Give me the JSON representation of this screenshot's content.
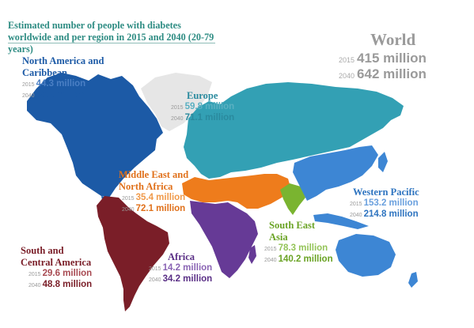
{
  "title": "Estimated number of people with diabetes worldwide and per region in 2015 and 2040 (20-79 years)",
  "world": {
    "name": "World",
    "rows": [
      {
        "year": "2015",
        "value": "415 million"
      },
      {
        "year": "2040",
        "value": "642 million"
      }
    ]
  },
  "regions": {
    "north_america": {
      "name_line1": "North America and",
      "name_line2": "Caribbean",
      "color": "#1c5aa6",
      "y2015": "2015",
      "v2015": "44.3 million",
      "y2040": "2040",
      "v2040": "60.5 million"
    },
    "europe": {
      "name_line1": "Europe",
      "color": "#33a0b4",
      "y2015": "2015",
      "v2015": "59.8 million",
      "y2040": "2040",
      "v2040": "71.1 million"
    },
    "mena": {
      "name_line1": "Middle East and",
      "name_line2": "North Africa",
      "color": "#ee7c1c",
      "y2015": "2015",
      "v2015": "35.4 million",
      "y2040": "2040",
      "v2040": "72.1 million"
    },
    "western_pacific": {
      "name_line1": "Western Pacific",
      "color": "#3d86d4",
      "y2015": "2015",
      "v2015": "153.2 million",
      "y2040": "2040",
      "v2040": "214.8 million"
    },
    "south_east_asia": {
      "name_line1": "South East",
      "name_line2": "Asia",
      "color": "#7ab430",
      "y2015": "2015",
      "v2015": "78.3 million",
      "y2040": "2040",
      "v2040": "140.2 million"
    },
    "africa": {
      "name_line1": "Africa",
      "color": "#663a96",
      "y2015": "2015",
      "v2015": "14.2 million",
      "y2040": "2040",
      "v2040": "34.2 million"
    },
    "south_central_america": {
      "name_line1": "South and",
      "name_line2": "Central America",
      "color": "#7a1e28",
      "y2015": "2015",
      "v2015": "29.6 million",
      "y2040": "2040",
      "v2040": "48.8 million"
    }
  },
  "greenland_color": "#e6e6e6"
}
